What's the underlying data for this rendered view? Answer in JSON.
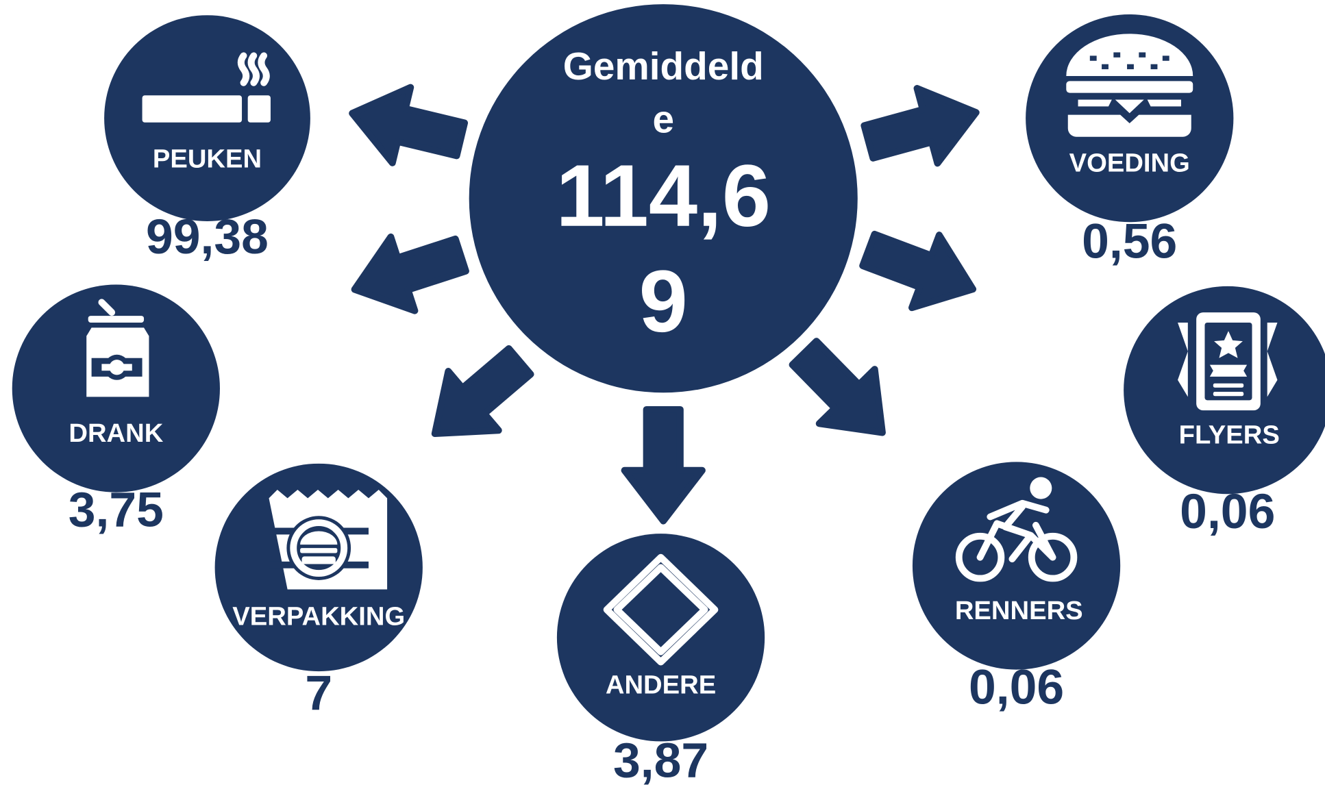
{
  "center": {
    "label_lines": [
      "Gemiddeld",
      "e"
    ],
    "value_lines": [
      "114,6",
      "9"
    ]
  },
  "items": [
    {
      "label": "PEUKEN",
      "value": "99,38"
    },
    {
      "label": "DRANK",
      "value": "3,75"
    },
    {
      "label": "VERPAKKING",
      "value": "7"
    },
    {
      "label": "ANDERE",
      "value": "3,87"
    },
    {
      "label": "RENNERS",
      "value": "0,06"
    },
    {
      "label": "FLYERS",
      "value": "0,06"
    },
    {
      "label": "VOEDING",
      "value": "0,56"
    }
  ]
}
